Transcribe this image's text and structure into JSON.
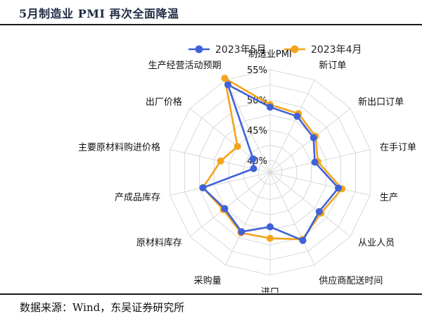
{
  "page": {
    "title": "5月制造业 PMI 再次全面降温",
    "source": "数据来源：Wind，东吴证券研究所"
  },
  "chart_data": {
    "type": "radar",
    "title": "",
    "categories": [
      "制造业PMI",
      "新订单",
      "新出口订单",
      "在手订单",
      "生产",
      "从业人员",
      "供应商配送时间",
      "进口",
      "采购量",
      "原材料库存",
      "产成品库存",
      "主要原材料购进价格",
      "出厂价格",
      "生产经营活动预期"
    ],
    "series": [
      {
        "name": "2023年5月",
        "color": "#3f62d8",
        "values": [
          48.8,
          48.3,
          47.2,
          45.6,
          49.6,
          48.4,
          50.5,
          47.0,
          48.9,
          47.6,
          49.4,
          40.8,
          41.6,
          54.1
        ]
      },
      {
        "name": "2023年4月",
        "color": "#f5a31a",
        "values": [
          49.2,
          48.8,
          47.6,
          46.1,
          50.2,
          48.8,
          50.3,
          48.9,
          49.1,
          47.9,
          49.4,
          46.4,
          44.9,
          55.3
        ]
      }
    ],
    "rlim": [
      38,
      55
    ],
    "ticks": [
      "40%",
      "45%",
      "50%",
      "55%"
    ],
    "tick_values": [
      40,
      45,
      50,
      55
    ],
    "legend_position": "top",
    "grid": true
  }
}
